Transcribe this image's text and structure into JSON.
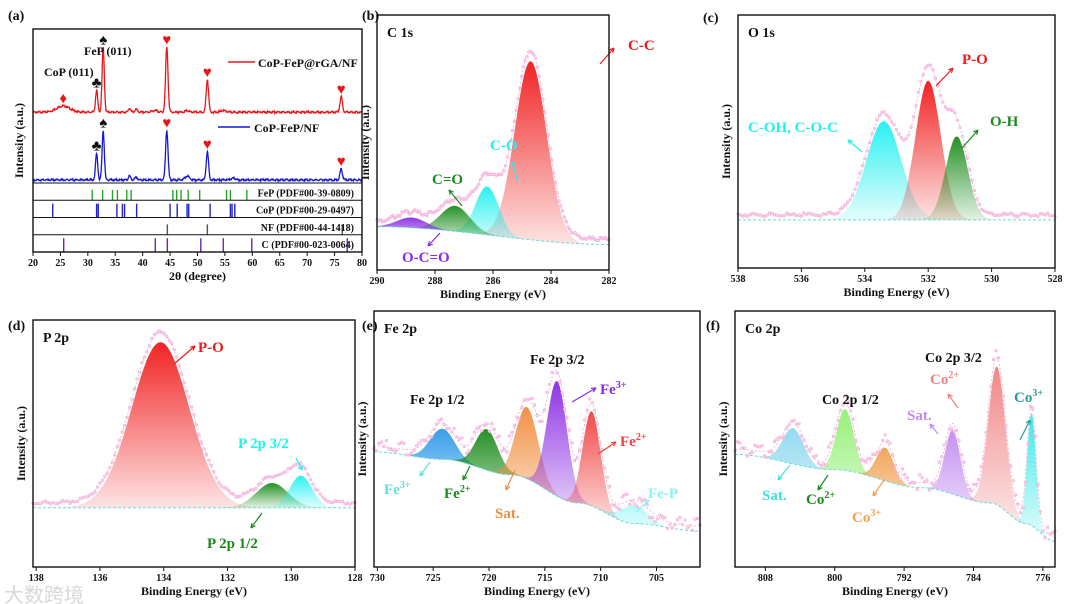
{
  "watermark": "大数跨境",
  "chart_data": [
    {
      "panel": "(a)",
      "type": "line",
      "title": "",
      "xlabel": "2θ (degree)",
      "ylabel": "Intensity (a.u.)",
      "xlim": [
        20,
        80
      ],
      "ylim": [
        0,
        1
      ],
      "xticks": [
        "20",
        "25",
        "30",
        "35",
        "40",
        "45",
        "50",
        "55",
        "60",
        "65",
        "70",
        "75",
        "80"
      ],
      "series": [
        {
          "name": "CoP-FeP@rGA/NF",
          "color": "#e8161b",
          "offset": 0.46,
          "peaks": [
            [
              25.5,
              0.04,
              1.2
            ],
            [
              31.6,
              0.14,
              0.2
            ],
            [
              32.8,
              0.42,
              0.2
            ],
            [
              37.6,
              0.025,
              0.2
            ],
            [
              38.8,
              0.02,
              0.2
            ],
            [
              42.2,
              0.01,
              0.5
            ],
            [
              44.4,
              0.42,
              0.22
            ],
            [
              48.1,
              0.01,
              0.3
            ],
            [
              51.8,
              0.21,
              0.22
            ],
            [
              54.7,
              0.012,
              0.4
            ],
            [
              76.2,
              0.1,
              0.22
            ]
          ]
        },
        {
          "name": "CoP-FeP/NF",
          "color": "#1515d8",
          "offset": 0.02,
          "peaks": [
            [
              31.6,
              0.17,
              0.2
            ],
            [
              32.8,
              0.32,
              0.2
            ],
            [
              37.6,
              0.025,
              0.2
            ],
            [
              38.8,
              0.02,
              0.2
            ],
            [
              44.4,
              0.32,
              0.22
            ],
            [
              48.1,
              0.025,
              0.4
            ],
            [
              51.8,
              0.18,
              0.22
            ],
            [
              56.5,
              0.01,
              0.4
            ],
            [
              76.2,
              0.07,
              0.22
            ]
          ]
        }
      ],
      "markers": [
        {
          "glyph": "♦",
          "x": 25.5,
          "series": 0,
          "color": "#e8161b"
        },
        {
          "glyph": "♣",
          "x": 31.6,
          "series": 0,
          "color": "#111111"
        },
        {
          "glyph": "♠",
          "x": 32.8,
          "series": 0,
          "color": "#111111"
        },
        {
          "glyph": "♥",
          "x": 44.4,
          "series": 0,
          "color": "#e8161b"
        },
        {
          "glyph": "♥",
          "x": 51.8,
          "series": 0,
          "color": "#e8161b"
        },
        {
          "glyph": "♥",
          "x": 76.2,
          "series": 0,
          "color": "#e8161b"
        },
        {
          "glyph": "♣",
          "x": 31.6,
          "series": 1,
          "color": "#111111"
        },
        {
          "glyph": "♠",
          "x": 32.8,
          "series": 1,
          "color": "#111111"
        },
        {
          "glyph": "♥",
          "x": 44.4,
          "series": 1,
          "color": "#e8161b"
        },
        {
          "glyph": "♥",
          "x": 51.8,
          "series": 1,
          "color": "#e8161b"
        },
        {
          "glyph": "♥",
          "x": 76.2,
          "series": 1,
          "color": "#e8161b"
        }
      ],
      "annotations": [
        "CoP (011)",
        "FeP (011)"
      ],
      "references": [
        {
          "name": "FeP (PDF#00-39-0809)",
          "color": "#2aa12a",
          "positions": [
            30.8,
            32.7,
            34.5,
            35.4,
            37.1,
            37.9,
            45.5,
            46.2,
            47.0,
            48.3,
            50.4,
            55.3,
            56.0,
            59.0
          ]
        },
        {
          "name": "CoP (PDF#00-29-0497)",
          "color": "#2222cc",
          "positions": [
            23.6,
            31.6,
            31.9,
            35.3,
            36.3,
            36.7,
            38.9,
            45.0,
            46.3,
            48.1,
            48.4,
            52.3,
            56.0,
            56.3,
            56.8
          ]
        },
        {
          "name": "NF (PDF#00-44-1418)",
          "color": "#555555",
          "positions": [
            44.5,
            51.8,
            76.4
          ]
        },
        {
          "name": "C (PDF#00-023-0064)",
          "color": "#6a2aa0",
          "positions": [
            25.6,
            42.3,
            44.5,
            50.6,
            54.7,
            59.9,
            77.3
          ]
        }
      ]
    },
    {
      "panel": "(b)",
      "type": "area",
      "title": "C 1s",
      "xlabel": "Binding Energy (eV)",
      "ylabel": "Intensity (a.u.)",
      "xlim": [
        290,
        282
      ],
      "ylim": [
        0,
        1
      ],
      "xticks": [
        "290",
        "288",
        "286",
        "284",
        "282"
      ],
      "baseline": [
        [
          290,
          0.17
        ],
        [
          282,
          0.1
        ]
      ],
      "peaks": [
        {
          "label": "C-C",
          "center": 284.7,
          "amp": 0.7,
          "sigma": 0.55,
          "color": "#f01818"
        },
        {
          "label": "C-O",
          "center": 286.2,
          "amp": 0.19,
          "sigma": 0.4,
          "color": "#1ff0f0"
        },
        {
          "label": "C=O",
          "center": 287.3,
          "amp": 0.1,
          "sigma": 0.5,
          "color": "#1a8a1a"
        },
        {
          "label": "O-C=O",
          "center": 288.8,
          "amp": 0.04,
          "sigma": 0.5,
          "color": "#8a2be2"
        }
      ]
    },
    {
      "panel": "(c)",
      "type": "area",
      "title": "O 1s",
      "xlabel": "Binding Energy (eV)",
      "ylabel": "Intensity (a.u.)",
      "xlim": [
        538,
        528
      ],
      "ylim": [
        0,
        1
      ],
      "xticks": [
        "538",
        "536",
        "534",
        "532",
        "530",
        "528"
      ],
      "baseline": [
        [
          538,
          0.19
        ],
        [
          528,
          0.19
        ]
      ],
      "peaks": [
        {
          "label": "C-OH, C-O-C",
          "center": 533.4,
          "amp": 0.39,
          "sigma": 0.55,
          "color": "#1ff0f0"
        },
        {
          "label": "P-O",
          "center": 532.0,
          "amp": 0.55,
          "sigma": 0.4,
          "color": "#f01818"
        },
        {
          "label": "O-H",
          "center": 531.1,
          "amp": 0.33,
          "sigma": 0.35,
          "color": "#1a8a1a"
        }
      ]
    },
    {
      "panel": "(d)",
      "type": "area",
      "title": "P 2p",
      "xlabel": "Binding Energy (eV)",
      "ylabel": "Intensity (a.u.)",
      "xlim": [
        138.1,
        128
      ],
      "ylim": [
        0,
        1
      ],
      "xticks": [
        "138",
        "136",
        "134",
        "132",
        "130",
        "128"
      ],
      "baseline": [
        [
          138.1,
          0.24
        ],
        [
          128,
          0.24
        ]
      ],
      "peaks": [
        {
          "label": "P-O",
          "center": 134.1,
          "amp": 0.67,
          "sigma": 0.9,
          "color": "#f01818"
        },
        {
          "label": "P 2p 1/2",
          "center": 130.6,
          "amp": 0.1,
          "sigma": 0.5,
          "color": "#1a8a1a"
        },
        {
          "label": "P 2p 3/2",
          "center": 129.7,
          "amp": 0.13,
          "sigma": 0.35,
          "color": "#1ff0f0"
        }
      ]
    },
    {
      "panel": "(e)",
      "type": "area",
      "title": "Fe 2p",
      "xlabel": "Binding Energy (eV)",
      "ylabel": "Intensity (a.u.)",
      "xlim": [
        730.3,
        701.1
      ],
      "ylim": [
        0,
        1
      ],
      "xticks": [
        "730",
        "725",
        "720",
        "715",
        "710",
        "705"
      ],
      "group_labels": [
        "Fe 2p 3/2",
        "Fe 2p 1/2"
      ],
      "baseline": [
        [
          730.3,
          0.45
        ],
        [
          724,
          0.42
        ],
        [
          718,
          0.36
        ],
        [
          712,
          0.25
        ],
        [
          707,
          0.17
        ],
        [
          701.1,
          0.14
        ]
      ],
      "peaks": [
        {
          "label": "Fe",
          "sup": "3+",
          "center": 724.2,
          "amp": 0.12,
          "sigma": 1.1,
          "color": "#2f9ae8",
          "label_color": "#5fe0e0"
        },
        {
          "label": "Fe",
          "sup": "2+",
          "center": 720.2,
          "amp": 0.16,
          "sigma": 1.0,
          "color": "#1a8a1a"
        },
        {
          "label": "Sat.",
          "center": 716.6,
          "amp": 0.28,
          "sigma": 1.0,
          "color": "#f08c3c"
        },
        {
          "label": "Fe",
          "sup": "3+",
          "center": 713.9,
          "amp": 0.45,
          "sigma": 0.9,
          "color": "#8a2be2"
        },
        {
          "label": "Fe",
          "sup": "2+",
          "center": 710.8,
          "amp": 0.37,
          "sigma": 0.8,
          "color": "#f04040"
        },
        {
          "label": "Fe-P",
          "center": 707.0,
          "amp": 0.07,
          "sigma": 1.2,
          "color": "#40f0f0",
          "label_color": "#8ff0f0"
        }
      ]
    },
    {
      "panel": "(f)",
      "type": "area",
      "title": "Co 2p",
      "xlabel": "Binding Energy (eV)",
      "ylabel": "Intensity (a.u.)",
      "xlim": [
        811.5,
        774.6
      ],
      "ylim": [
        0,
        1
      ],
      "xticks": [
        "808",
        "800",
        "792",
        "784",
        "776"
      ],
      "group_labels": [
        "Co 2p 3/2",
        "Co 2p 1/2"
      ],
      "baseline": [
        [
          811.5,
          0.44
        ],
        [
          800,
          0.38
        ],
        [
          790,
          0.31
        ],
        [
          782,
          0.25
        ],
        [
          778,
          0.17
        ],
        [
          774.6,
          0.1
        ]
      ],
      "peaks": [
        {
          "label": "Sat.",
          "center": 804.8,
          "amp": 0.14,
          "sigma": 1.2,
          "color": "#8fd8f0",
          "label_color": "#40e0e0"
        },
        {
          "label": "Co",
          "sup": "2+",
          "center": 798.8,
          "amp": 0.24,
          "sigma": 1.0,
          "color": "#90f070",
          "label_color": "#1a8a1a"
        },
        {
          "label": "Co",
          "sup": "3+",
          "center": 794.2,
          "amp": 0.13,
          "sigma": 1.0,
          "color": "#f0a050"
        },
        {
          "label": "Sat.",
          "center": 786.4,
          "amp": 0.25,
          "sigma": 0.9,
          "color": "#c08af0"
        },
        {
          "label": "Co",
          "sup": "2+",
          "center": 781.3,
          "amp": 0.54,
          "sigma": 1.0,
          "color": "#f08080"
        },
        {
          "label": "Co",
          "sup": "3+",
          "center": 777.3,
          "amp": 0.44,
          "sigma": 0.5,
          "color": "#30e8e8",
          "label_color": "#2a9a9a"
        }
      ]
    }
  ]
}
